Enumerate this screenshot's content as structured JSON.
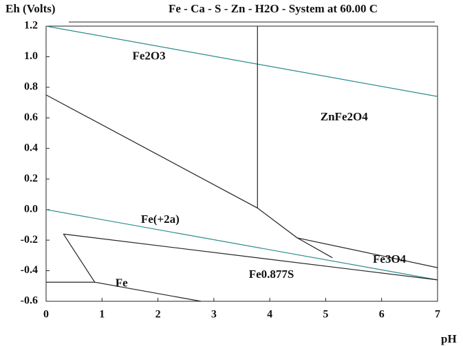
{
  "chart_data": {
    "type": "line",
    "title": "Fe - Ca - S - Zn - H2O - System at 60.00 C",
    "y_label": "Eh (Volts)",
    "x_label": "pH",
    "xlim": [
      0,
      7
    ],
    "ylim": [
      -0.6,
      1.2
    ],
    "xticks": [
      0,
      1,
      2,
      3,
      4,
      5,
      6,
      7
    ],
    "yticks": [
      -0.6,
      -0.4,
      -0.2,
      {
        "value": 0,
        "label": "0.0"
      },
      0.2,
      0.4,
      0.6,
      0.8,
      {
        "value": 1,
        "label": "1.0"
      },
      1.2
    ],
    "lines": [
      {
        "color": "#2a8a8a",
        "x": [
          0,
          7
        ],
        "y": [
          1.2,
          0.74
        ]
      },
      {
        "color": "#2a8a8a",
        "x": [
          0,
          7
        ],
        "y": [
          0,
          -0.46
        ]
      },
      {
        "color": "#222222",
        "x": [
          3.78,
          3.78
        ],
        "y": [
          1.2,
          0.01
        ]
      },
      {
        "color": "#222222",
        "x": [
          0,
          3.78,
          4.49,
          7
        ],
        "y": [
          0.75,
          0.01,
          -0.185,
          -0.38
        ]
      },
      {
        "color": "#222222",
        "x": [
          4.49,
          5.12
        ],
        "y": [
          -0.185,
          -0.315
        ]
      },
      {
        "color": "#222222",
        "x": [
          0.31,
          7
        ],
        "y": [
          -0.16,
          -0.46
        ]
      },
      {
        "color": "#222222",
        "x": [
          0.31,
          0.87,
          2.77
        ],
        "y": [
          -0.16,
          -0.475,
          -0.6
        ]
      },
      {
        "color": "#222222",
        "x": [
          0,
          0.87
        ],
        "y": [
          -0.475,
          -0.475
        ]
      }
    ],
    "annotations": [
      {
        "text": "Fe2O3",
        "x": 1.84,
        "y": 1.0
      },
      {
        "text": "ZnFe2O4",
        "x": 5.33,
        "y": 0.6
      },
      {
        "text": "Fe(+2a)",
        "x": 2.04,
        "y": -0.07
      },
      {
        "text": "Fe3O4",
        "x": 6.14,
        "y": -0.33
      },
      {
        "text": "Fe0.877S",
        "x": 4.03,
        "y": -0.43
      },
      {
        "text": "Fe",
        "x": 1.35,
        "y": -0.485
      }
    ]
  }
}
